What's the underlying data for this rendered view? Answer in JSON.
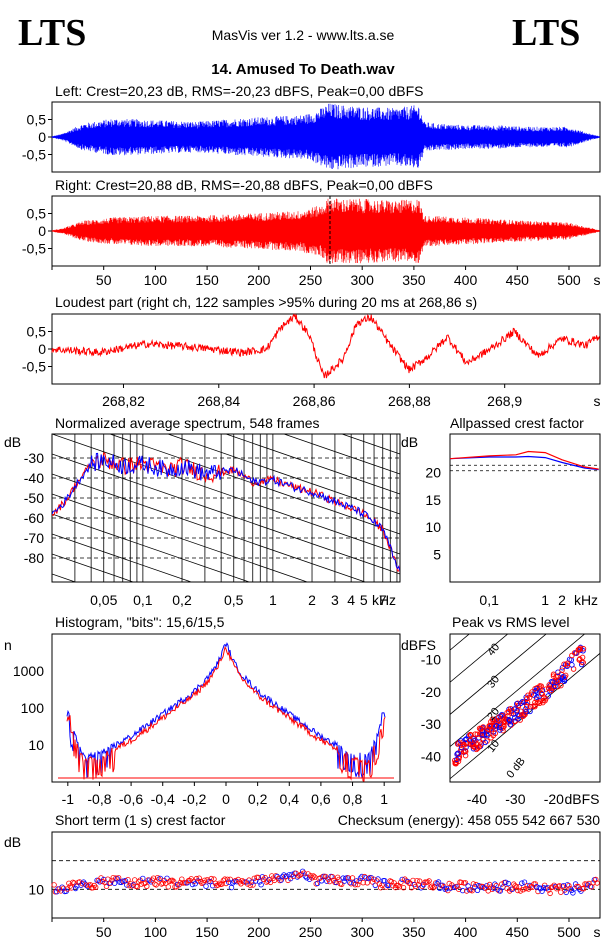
{
  "header": {
    "logo_left": "LTS",
    "logo_right": "LTS",
    "app": "MasVis ver 1.2 - www.lts.a.se",
    "file": "14. Amused To Death.wav"
  },
  "colors": {
    "left": "#0000ff",
    "right": "#ff0000",
    "ink": "#000000"
  },
  "left_wave": {
    "title": "Left: Crest=20,23 dB, RMS=-20,23 dBFS, Peak=0,00 dBFS",
    "yticks": [
      "0,5",
      "0",
      "-0,5"
    ]
  },
  "right_wave": {
    "title": "Right: Crest=20,88 dB, RMS=-20,88 dBFS, Peak=0,00 dBFS",
    "yticks": [
      "0,5",
      "0",
      "-0,5"
    ],
    "xticks": [
      "50",
      "100",
      "150",
      "200",
      "250",
      "300",
      "350",
      "400",
      "450",
      "500"
    ],
    "xunit": "s"
  },
  "loudest": {
    "title": "Loudest part (right ch, 122 samples >95% during 20 ms at 268,86 s)",
    "yticks": [
      "0,5",
      "0",
      "-0,5"
    ],
    "xticks": [
      "268,82",
      "268,84",
      "268,86",
      "268,88",
      "268,9"
    ],
    "xunit": "s"
  },
  "spectrum": {
    "title": "Normalized average spectrum, 548 frames",
    "yunit": "dB",
    "yticks": [
      "-30",
      "-40",
      "-50",
      "-60",
      "-70",
      "-80"
    ],
    "xticks": [
      "0,05",
      "0,1",
      "0,2",
      "0,5",
      "1",
      "2",
      "3",
      "4",
      "5",
      "7"
    ],
    "xunit": "kHz"
  },
  "allpass": {
    "title": "Allpassed crest factor",
    "yunit": "dB",
    "yticks": [
      "20",
      "15",
      "10",
      "5"
    ],
    "xticks": [
      "0,1",
      "1",
      "2"
    ],
    "xunit": "kHz"
  },
  "histogram": {
    "title": "Histogram, \"bits\": 15,6/15,5",
    "yunit": "n",
    "yticks": [
      "1000",
      "100",
      "10"
    ],
    "xticks": [
      "-1",
      "-0,8",
      "-0,6",
      "-0,4",
      "-0,2",
      "0",
      "0,2",
      "0,4",
      "0,6",
      "0,8",
      "1"
    ]
  },
  "peak_rms": {
    "title": "Peak vs RMS level",
    "yunit": "dBFS",
    "yticks": [
      "-10",
      "-20",
      "-30",
      "-40"
    ],
    "xticks": [
      "-40",
      "-30",
      "-20"
    ],
    "xunit": "dBFS",
    "diag_labels": [
      "40",
      "30",
      "20",
      "10",
      "0 dB"
    ]
  },
  "short_crest": {
    "title": "Short term (1 s) crest factor",
    "checksum": "Checksum (energy):   458 055 542 667 530",
    "yunit": "dB",
    "yticks": [
      "10"
    ],
    "xticks": [
      "50",
      "100",
      "150",
      "200",
      "250",
      "300",
      "350",
      "400",
      "450",
      "500"
    ],
    "xunit": "s"
  },
  "chart_data": [
    {
      "type": "area",
      "name": "left_waveform",
      "x_range": [
        0,
        530
      ],
      "ylim": [
        -1,
        1
      ],
      "envelope_times": [
        0,
        10,
        30,
        60,
        100,
        140,
        180,
        210,
        240,
        250,
        260,
        268,
        280,
        300,
        330,
        355,
        360,
        370,
        400,
        430,
        460,
        500,
        520,
        530
      ],
      "envelope_peak": [
        0.02,
        0.1,
        0.4,
        0.55,
        0.5,
        0.45,
        0.55,
        0.6,
        0.65,
        0.7,
        0.85,
        1.0,
        0.95,
        0.9,
        0.85,
        0.95,
        0.45,
        0.4,
        0.35,
        0.35,
        0.3,
        0.3,
        0.1,
        0.02
      ]
    },
    {
      "type": "area",
      "name": "right_waveform",
      "x_range": [
        0,
        530
      ],
      "ylim": [
        -1,
        1
      ],
      "envelope_times": [
        0,
        10,
        30,
        60,
        100,
        140,
        180,
        210,
        240,
        250,
        260,
        268,
        280,
        300,
        330,
        355,
        360,
        370,
        400,
        430,
        460,
        500,
        520,
        530
      ],
      "envelope_peak": [
        0.02,
        0.08,
        0.3,
        0.4,
        0.45,
        0.45,
        0.5,
        0.55,
        0.6,
        0.7,
        0.75,
        1.0,
        0.95,
        0.95,
        0.9,
        0.95,
        0.45,
        0.45,
        0.4,
        0.35,
        0.3,
        0.25,
        0.1,
        0.02
      ]
    },
    {
      "type": "line",
      "name": "loudest_part",
      "x_range": [
        268.805,
        268.92
      ],
      "ylim": [
        -1,
        1
      ],
      "x": [
        268.805,
        268.815,
        268.825,
        268.835,
        268.845,
        268.85,
        268.853,
        268.856,
        268.859,
        268.862,
        268.866,
        268.869,
        268.872,
        268.876,
        268.88,
        268.884,
        268.888,
        268.892,
        268.897,
        268.902,
        268.907,
        268.912,
        268.917,
        268.92
      ],
      "y": [
        0,
        -0.1,
        0.15,
        0.05,
        -0.1,
        0.0,
        0.6,
        0.95,
        0.4,
        -0.8,
        -0.3,
        0.75,
        0.9,
        0.1,
        -0.6,
        -0.2,
        0.35,
        -0.4,
        0.0,
        0.5,
        -0.2,
        0.3,
        0.1,
        0.4
      ]
    },
    {
      "type": "line",
      "name": "spectrum",
      "x_scale": "log",
      "xlim": [
        0.02,
        9.5
      ],
      "ylim": [
        -92,
        -18
      ],
      "x": [
        0.02,
        0.025,
        0.03,
        0.035,
        0.04,
        0.05,
        0.07,
        0.1,
        0.15,
        0.2,
        0.3,
        0.5,
        0.7,
        1,
        1.5,
        2,
        3,
        4,
        5,
        6,
        7,
        8,
        9
      ],
      "y": [
        -58,
        -52,
        -44,
        -38,
        -33,
        -31,
        -34,
        -33,
        -36,
        -34,
        -38,
        -36,
        -42,
        -41,
        -45,
        -47,
        -52,
        -55,
        -58,
        -62,
        -66,
        -75,
        -85
      ],
      "series": [
        {
          "name": "L"
        },
        {
          "name": "R"
        }
      ]
    },
    {
      "type": "line",
      "name": "allpassed_crest",
      "x_scale": "log",
      "xlim": [
        0.02,
        9.5
      ],
      "ylim": [
        0,
        27
      ],
      "series": [
        {
          "name": "L",
          "x": [
            0.02,
            0.1,
            0.3,
            0.5,
            1,
            2,
            5,
            9
          ],
          "y": [
            22.5,
            22.8,
            22.8,
            22.9,
            22.7,
            21.8,
            20.8,
            20.5
          ]
        },
        {
          "name": "R",
          "x": [
            0.02,
            0.1,
            0.3,
            0.5,
            1,
            2,
            5,
            9
          ],
          "y": [
            22.5,
            23.0,
            23.2,
            23.8,
            23.6,
            22.3,
            21.0,
            20.6
          ]
        }
      ]
    },
    {
      "type": "line",
      "name": "histogram",
      "x_range": [
        -1.1,
        1.1
      ],
      "y_scale": "log",
      "ylim": [
        1,
        10000
      ],
      "x": [
        -1,
        -0.9,
        -0.8,
        -0.6,
        -0.4,
        -0.2,
        -0.1,
        -0.05,
        0,
        0.05,
        0.1,
        0.2,
        0.4,
        0.6,
        0.8,
        0.9,
        1
      ],
      "y": [
        50,
        4,
        5,
        15,
        60,
        250,
        700,
        1500,
        5000,
        1500,
        700,
        250,
        60,
        15,
        5,
        4,
        50
      ]
    },
    {
      "type": "scatter",
      "name": "peak_vs_rms",
      "xlim": [
        -47,
        -8
      ],
      "ylim": [
        -48,
        -2
      ],
      "x": [
        -46,
        -44,
        -42,
        -40,
        -38,
        -36,
        -34,
        -32,
        -30,
        -28,
        -26,
        -24,
        -22,
        -20,
        -18,
        -16,
        -14,
        -12
      ],
      "y": [
        -40,
        -38,
        -36,
        -35,
        -33,
        -31,
        -30,
        -28,
        -27,
        -25,
        -23,
        -21,
        -20,
        -17,
        -15,
        -12,
        -10,
        -8
      ]
    },
    {
      "type": "scatter",
      "name": "short_term_crest",
      "x_range": [
        0,
        530
      ],
      "ylim": [
        0,
        30
      ],
      "x": [
        0,
        20,
        40,
        60,
        80,
        100,
        120,
        140,
        160,
        180,
        200,
        220,
        240,
        260,
        280,
        300,
        320,
        340,
        360,
        380,
        400,
        420,
        440,
        460,
        480,
        500,
        520,
        530
      ],
      "y": [
        10,
        11,
        12,
        13,
        12,
        13,
        12,
        13,
        12,
        12,
        13,
        14,
        15,
        13,
        13,
        13,
        12,
        12,
        12,
        11,
        11,
        11,
        11,
        11,
        10,
        10,
        11,
        13
      ]
    }
  ]
}
